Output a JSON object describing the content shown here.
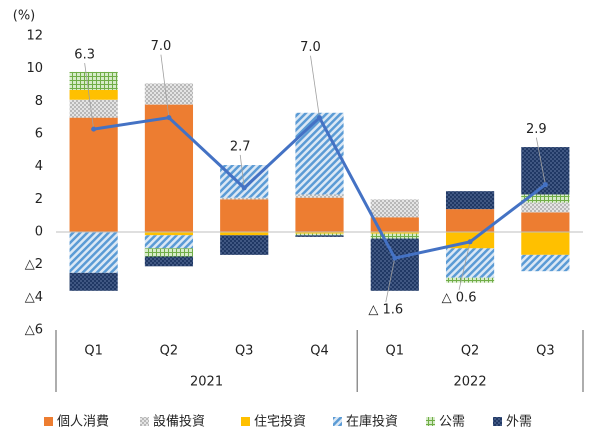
{
  "chart_data": {
    "type": "stacked-bar-line",
    "y_unit": "(%)",
    "groups": [
      {
        "label": "2021",
        "categories": [
          "Q1",
          "Q2",
          "Q3",
          "Q4"
        ]
      },
      {
        "label": "2022",
        "categories": [
          "Q1",
          "Q2",
          "Q3"
        ]
      }
    ],
    "series": [
      {
        "name": "個人消費",
        "color": "#ed7d31",
        "pattern": "solid",
        "values": [
          7.0,
          7.8,
          2.0,
          2.1,
          0.9,
          1.4,
          1.2
        ]
      },
      {
        "name": "設備投資",
        "color": "#a5a5a5",
        "pattern": "dots",
        "values": [
          1.1,
          1.3,
          0.1,
          0.2,
          1.1,
          0,
          0.6
        ]
      },
      {
        "name": "住宅投資",
        "color": "#ffc000",
        "pattern": "solid",
        "values": [
          0.6,
          -0.2,
          -0.2,
          -0.1,
          -0.1,
          -1.0,
          -1.4
        ]
      },
      {
        "name": "在庫投資",
        "color": "#5b9bd5",
        "pattern": "hatch",
        "values": [
          -2.5,
          -0.8,
          2.0,
          5.0,
          0,
          -1.8,
          -1.0
        ]
      },
      {
        "name": "公需",
        "color": "#70ad47",
        "pattern": "grid",
        "values": [
          1.1,
          -0.5,
          0,
          -0.1,
          -0.3,
          -0.3,
          0.5
        ]
      },
      {
        "name": "外需",
        "color": "#203864",
        "pattern": "darkdots",
        "values": [
          -1.1,
          -0.6,
          -1.2,
          -0.1,
          -3.2,
          1.1,
          2.9
        ]
      }
    ],
    "total": {
      "color": "#4472c4",
      "values": [
        6.3,
        7.0,
        2.7,
        7.0,
        -1.6,
        -0.6,
        2.9
      ],
      "value_labels": [
        "6.3",
        "7.0",
        "2.7",
        "7.0",
        "△ 1.6",
        "△ 0.6",
        "2.9"
      ]
    },
    "ylim": [
      -6,
      12
    ],
    "yticks": [
      {
        "value": -6,
        "label": "△6"
      },
      {
        "value": -4,
        "label": "△4"
      },
      {
        "value": -2,
        "label": "△2"
      },
      0,
      2,
      4,
      6,
      8,
      10,
      12
    ]
  }
}
